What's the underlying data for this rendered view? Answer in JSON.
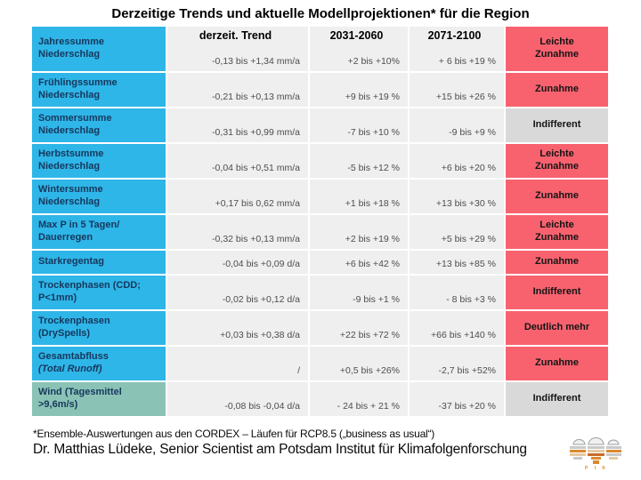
{
  "title": "Derzeitige Trends und aktuelle Modellprojektionen* für die Region",
  "table": {
    "headers": {
      "trend": "derzeit. Trend",
      "p1": "2031-2060",
      "p2": "2071-2100"
    },
    "rows": [
      {
        "label": "Jahressumme\nNiederschlag",
        "trend": "-0,13 bis +1,34 mm/a",
        "p1": "+2 bis +10%",
        "p2": "+ 6 bis +19 %",
        "assessment": "Leichte\nZunahme",
        "tone": "pink"
      },
      {
        "label": "Frühlingssumme\nNiederschlag",
        "trend": "-0,21 bis +0,13 mm/a",
        "p1": "+9 bis +19 %",
        "p2": "+15 bis +26 %",
        "assessment": "Zunahme",
        "tone": "pink"
      },
      {
        "label": "Sommersumme\nNiederschlag",
        "trend": "-0,31 bis +0,99 mm/a",
        "p1": "-7 bis +10 %",
        "p2": "-9 bis +9 %",
        "assessment": "Indifferent",
        "tone": "gray"
      },
      {
        "label": "Herbstsumme\nNiederschlag",
        "trend": "-0,04 bis +0,51 mm/a",
        "p1": "-5 bis +12 %",
        "p2": "+6 bis +20 %",
        "assessment": "Leichte\nZunahme",
        "tone": "pink"
      },
      {
        "label": "Wintersumme\nNiederschlag",
        "trend": "+0,17 bis 0,62 mm/a",
        "p1": "+1 bis +18 %",
        "p2": "+13 bis +30 %",
        "assessment": "Zunahme",
        "tone": "pink"
      },
      {
        "label": "Max P in 5 Tagen/\nDauerregen",
        "trend": "-0,32 bis +0,13 mm/a",
        "p1": "+2 bis +19 %",
        "p2": "+5 bis +29 %",
        "assessment": "Leichte\nZunahme",
        "tone": "pink"
      },
      {
        "label": "Starkregentag",
        "trend": "-0,04 bis +0,09 d/a",
        "p1": "+6 bis +42 %",
        "p2": "+13 bis +85 %",
        "assessment": "Zunahme",
        "tone": "pink"
      },
      {
        "label": "Trockenphasen (CDD;\nP<1mm)",
        "trend": "-0,02 bis +0,12 d/a",
        "p1": "-9 bis +1 %",
        "p2": "- 8 bis +3 %",
        "assessment": "Indifferent",
        "tone": "pink"
      },
      {
        "label": "Trockenphasen\n(DrySpells)",
        "trend": "+0,03 bis +0,38 d/a",
        "p1": "+22 bis +72 %",
        "p2": "+66 bis +140 %",
        "assessment": "Deutlich mehr",
        "tone": "pink"
      },
      {
        "label": "Gesamtabfluss\n(Total Runoff)",
        "label_style": "italic-line2",
        "trend": "/",
        "p1": "+0,5 bis +26%",
        "p2": "-2,7 bis +52%",
        "assessment": "Zunahme",
        "tone": "pink"
      },
      {
        "label": "Wind (Tagesmittel\n>9,6m/s)",
        "label_tone": "teal",
        "trend": "-0,08 bis -0,04 d/a",
        "p1": "- 24 bis + 21 %",
        "p2": "-37 bis +20 %",
        "assessment": "Indifferent",
        "tone": "gray"
      }
    ]
  },
  "footer": {
    "footnote": "*Ensemble-Auswertungen aus den CORDEX – Läufen für RCP8.5 („business as usual“)",
    "credit": "Dr. Matthias Lüdeke, Senior Scientist am Potsdam Institut für Klimafolgenforschung"
  },
  "logo": {
    "caption": "P I K"
  },
  "colors": {
    "label_blue": "#2EB6E8",
    "label_teal": "#8AC3B5",
    "assess_pink": "#F8626F",
    "assess_gray": "#D9D9D9",
    "value_bg": "#EFEFEF",
    "label_text": "#17375D"
  }
}
